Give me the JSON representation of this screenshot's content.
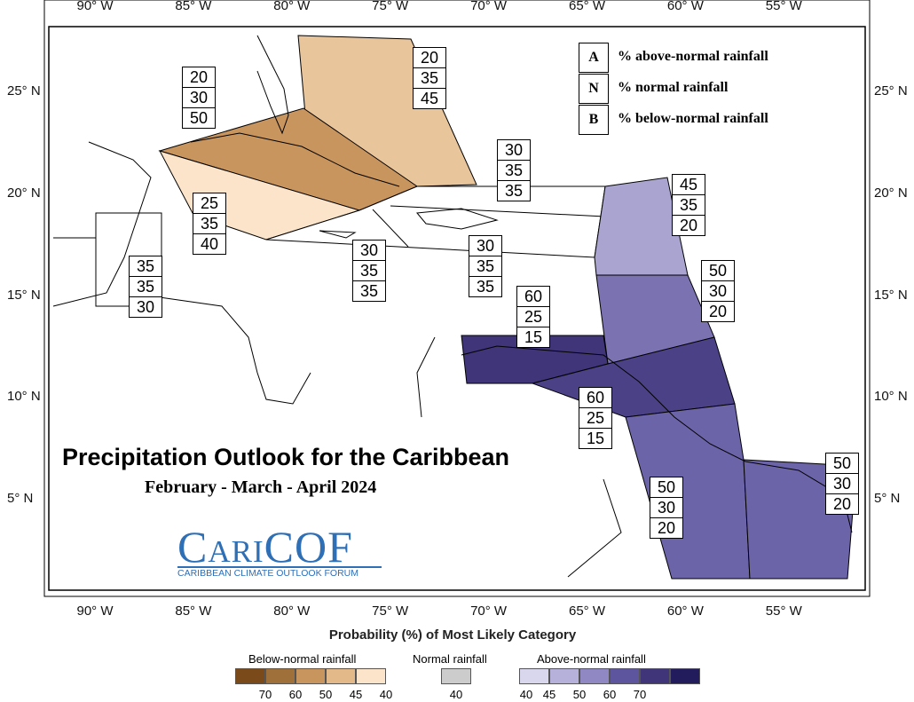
{
  "map": {
    "lon_labels": [
      "90° W",
      "85° W",
      "80° W",
      "75° W",
      "70° W",
      "65° W",
      "60° W",
      "55° W"
    ],
    "lat_labels": [
      "25° N",
      "20° N",
      "15° N",
      "10° N",
      "5° N"
    ]
  },
  "key": [
    {
      "letter": "A",
      "text": "% above-normal rainfall"
    },
    {
      "letter": "N",
      "text": "% normal rainfall"
    },
    {
      "letter": "B",
      "text": "% below-normal rainfall"
    }
  ],
  "regions": [
    {
      "values": [
        20,
        35,
        45
      ]
    },
    {
      "values": [
        20,
        30,
        50
      ]
    },
    {
      "values": [
        25,
        35,
        40
      ]
    },
    {
      "values": [
        30,
        35,
        35
      ]
    },
    {
      "values": [
        30,
        35,
        35
      ]
    },
    {
      "values": [
        30,
        35,
        35
      ]
    },
    {
      "values": [
        35,
        35,
        30
      ]
    },
    {
      "values": [
        45,
        35,
        20
      ]
    },
    {
      "values": [
        50,
        30,
        20
      ]
    },
    {
      "values": [
        60,
        25,
        15
      ]
    },
    {
      "values": [
        60,
        25,
        15
      ]
    },
    {
      "values": [
        50,
        30,
        20
      ]
    },
    {
      "values": [
        50,
        30,
        20
      ]
    }
  ],
  "title": "Precipitation Outlook for the Caribbean",
  "subtitle": "February - March - April 2024",
  "logo": {
    "name": "CariCOF",
    "tagline": "CARIBBEAN CLIMATE OUTLOOK FORUM"
  },
  "legend": {
    "title": "Probability (%) of Most Likely Category",
    "groups": [
      {
        "label": "Below-normal rainfall",
        "steps": [
          70,
          60,
          50,
          45,
          40
        ]
      },
      {
        "label": "Normal rainfall",
        "steps": [
          40
        ]
      },
      {
        "label": "Above-normal rainfall",
        "steps": [
          40,
          45,
          50,
          60,
          70
        ]
      }
    ]
  }
}
